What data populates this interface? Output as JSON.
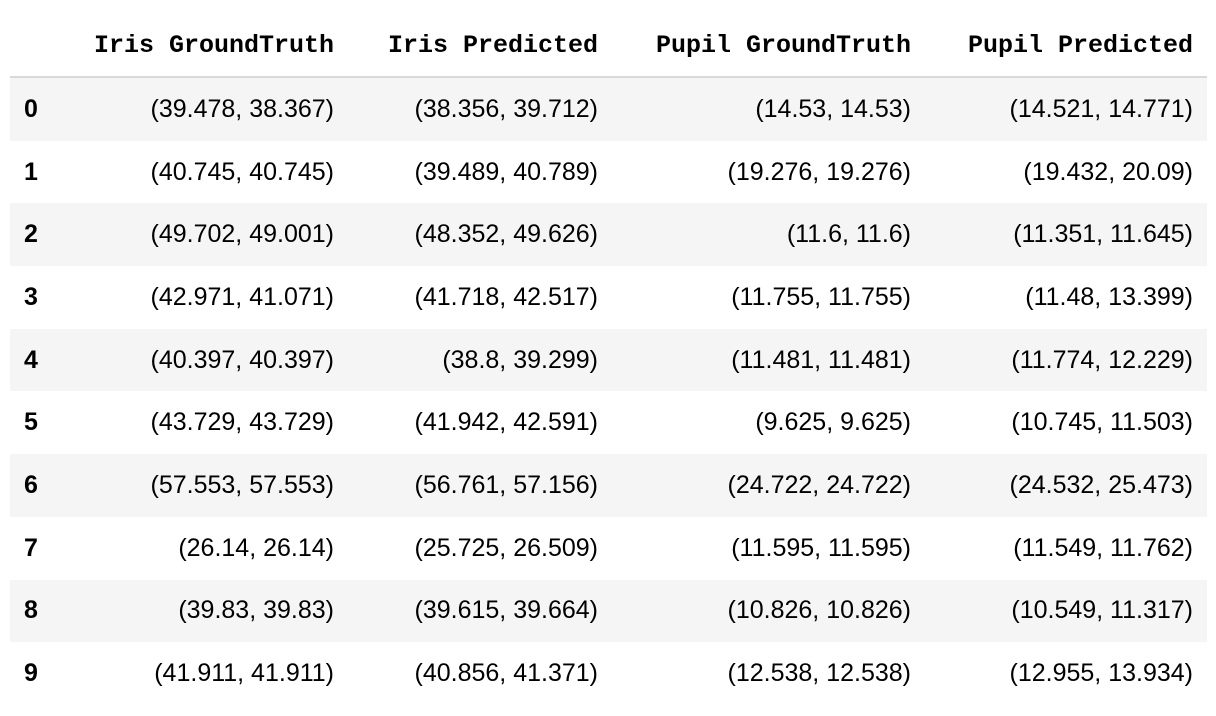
{
  "table": {
    "columns": [
      "",
      "Iris GroundTruth",
      "Iris Predicted",
      "Pupil GroundTruth",
      "Pupil Predicted"
    ],
    "rows": [
      [
        "0",
        "(39.478, 38.367)",
        "(38.356, 39.712)",
        "(14.53, 14.53)",
        "(14.521, 14.771)"
      ],
      [
        "1",
        "(40.745, 40.745)",
        "(39.489, 40.789)",
        "(19.276, 19.276)",
        "(19.432, 20.09)"
      ],
      [
        "2",
        "(49.702, 49.001)",
        "(48.352, 49.626)",
        "(11.6, 11.6)",
        "(11.351, 11.645)"
      ],
      [
        "3",
        "(42.971, 41.071)",
        "(41.718, 42.517)",
        "(11.755, 11.755)",
        "(11.48, 13.399)"
      ],
      [
        "4",
        "(40.397, 40.397)",
        "(38.8, 39.299)",
        "(11.481, 11.481)",
        "(11.774, 12.229)"
      ],
      [
        "5",
        "(43.729, 43.729)",
        "(41.942, 42.591)",
        "(9.625, 9.625)",
        "(10.745, 11.503)"
      ],
      [
        "6",
        "(57.553, 57.553)",
        "(56.761, 57.156)",
        "(24.722, 24.722)",
        "(24.532, 25.473)"
      ],
      [
        "7",
        "(26.14, 26.14)",
        "(25.725, 26.509)",
        "(11.595, 11.595)",
        "(11.549, 11.762)"
      ],
      [
        "8",
        "(39.83, 39.83)",
        "(39.615, 39.664)",
        "(10.826, 10.826)",
        "(10.549, 11.317)"
      ],
      [
        "9",
        "(41.911, 41.911)",
        "(40.856, 41.371)",
        "(12.538, 12.538)",
        "(12.955, 13.934)"
      ]
    ]
  },
  "colors": {
    "header_border": "#d9d9d9",
    "row_stripe": "#f5f5f5",
    "row_plain": "#ffffff",
    "text": "#000000"
  }
}
